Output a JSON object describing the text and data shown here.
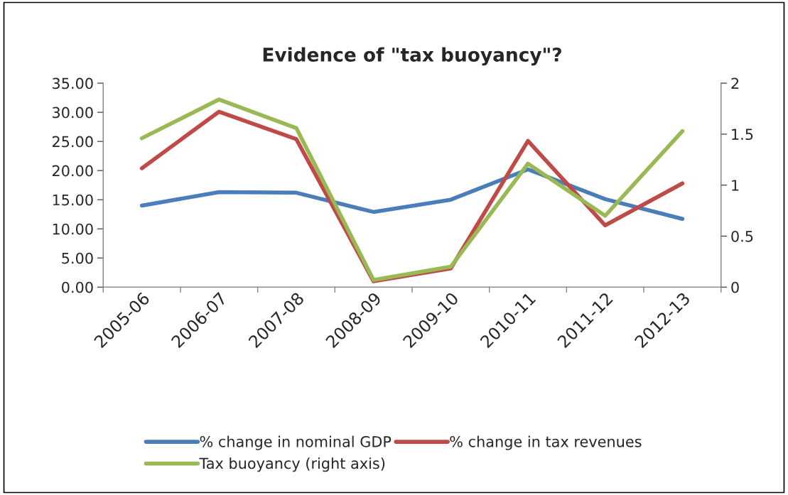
{
  "chart_data": {
    "type": "line",
    "title": "Evidence of \"tax buoyancy\"?",
    "categories": [
      "2005-06",
      "2006-07",
      "2007-08",
      "2008-09",
      "2009-10",
      "2010-11",
      "2011-12",
      "2012-13"
    ],
    "series": [
      {
        "name": "% change in nominal GDP",
        "color": "#4a7ebb",
        "values": [
          14.0,
          16.3,
          16.2,
          12.9,
          15.0,
          20.2,
          15.1,
          11.7
        ]
      },
      {
        "name": "% change in tax revenues",
        "color": "#be4b48",
        "values": [
          20.4,
          30.1,
          25.4,
          1.0,
          3.2,
          25.1,
          10.6,
          17.8
        ]
      },
      {
        "name": "Tax buoyancy (right axis)",
        "color": "#98b954",
        "axis": "y2",
        "values": [
          1.46,
          1.84,
          1.56,
          0.07,
          0.2,
          1.21,
          0.7,
          1.53
        ]
      }
    ],
    "ylim": [
      0,
      35
    ],
    "yticks": [
      {
        "value": 0,
        "label": "0.00"
      },
      {
        "value": 5,
        "label": "5.00"
      },
      {
        "value": 10,
        "label": "10.00"
      },
      {
        "value": 15,
        "label": "15.00"
      },
      {
        "value": 20,
        "label": "20.00"
      },
      {
        "value": 25,
        "label": "25.00"
      },
      {
        "value": 30,
        "label": "30.00"
      },
      {
        "value": 35,
        "label": "35.00"
      }
    ],
    "y2lim": [
      0,
      2
    ],
    "y2ticks": [
      0,
      0.5,
      1,
      1.5,
      2
    ],
    "grid": false,
    "legend": "bottom",
    "marker": "none",
    "line_style": "solid"
  }
}
